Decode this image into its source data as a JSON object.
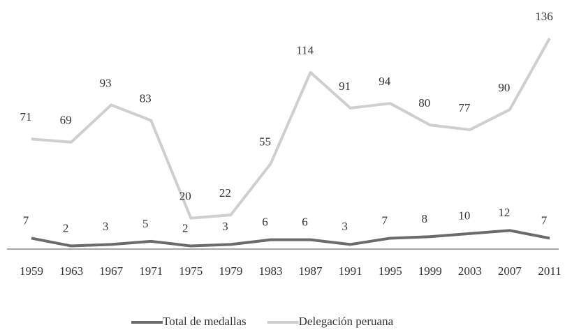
{
  "chart_data": {
    "type": "line",
    "categories": [
      "1959",
      "1963",
      "1967",
      "1971",
      "1975",
      "1979",
      "1983",
      "1987",
      "1991",
      "1995",
      "1999",
      "2003",
      "2007",
      "2011"
    ],
    "series": [
      {
        "name": "Total de medallas",
        "color": "#6b6b6b",
        "values": [
          7,
          2,
          3,
          5,
          2,
          3,
          6,
          6,
          3,
          7,
          8,
          10,
          12,
          7
        ]
      },
      {
        "name": "Delegación peruana",
        "color": "#cfcfcf",
        "values": [
          71,
          69,
          93,
          83,
          20,
          22,
          55,
          114,
          91,
          94,
          80,
          77,
          90,
          136
        ]
      }
    ],
    "ylim": [
      0,
      140
    ],
    "legend": "bottom"
  }
}
